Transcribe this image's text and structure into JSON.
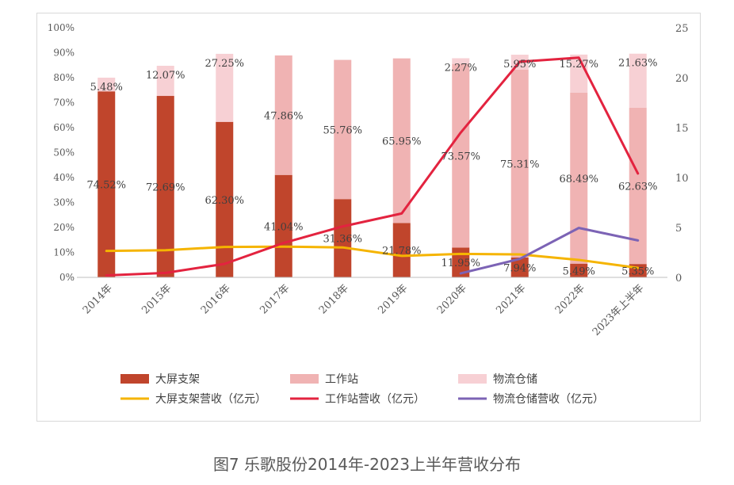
{
  "caption": "图7 乐歌股份2014年-2023上半年营收分布",
  "colors": {
    "large_screen_bar": "#c0452c",
    "workstation_bar": "#f0b3b3",
    "warehouse_bar": "#f7d0d4",
    "large_screen_line": "#f5b400",
    "workstation_line": "#e3233f",
    "warehouse_line": "#7c63b5",
    "axis_text": "#595959"
  },
  "chart_data": {
    "type": "bar",
    "stacked": true,
    "title": "",
    "categories": [
      "2014年",
      "2015年",
      "2016年",
      "2017年",
      "2018年",
      "2019年",
      "2020年",
      "2021年",
      "2022年",
      "2023年上半年"
    ],
    "y_left": {
      "ylim": [
        0,
        100
      ],
      "ticks": [
        "0%",
        "10%",
        "20%",
        "30%",
        "40%",
        "50%",
        "60%",
        "70%",
        "80%",
        "90%",
        "100%"
      ]
    },
    "y_right": {
      "ylim": [
        0,
        25
      ],
      "ticks": [
        "0",
        "5",
        "10",
        "15",
        "20",
        "25"
      ]
    },
    "grid": false,
    "legend_position": "bottom",
    "series": [
      {
        "name": "大屏支架",
        "kind": "bar",
        "axis": "left",
        "color": "#c0452c",
        "values": [
          74.52,
          72.69,
          62.3,
          41.04,
          31.36,
          21.78,
          11.95,
          7.94,
          5.49,
          5.35
        ],
        "labels": [
          "74.52%",
          "72.69%",
          "62.30%",
          "41.04%",
          "31.36%",
          "21.78%",
          "11.95%",
          "7.94%",
          "5.49%",
          "5.35%"
        ]
      },
      {
        "name": "工作站",
        "kind": "bar",
        "axis": "left",
        "color": "#f0b3b3",
        "values": [
          null,
          null,
          null,
          47.86,
          55.76,
          65.95,
          73.57,
          75.31,
          68.49,
          62.63
        ],
        "labels": [
          "",
          "",
          "",
          "47.86%",
          "55.76%",
          "65.95%",
          "73.57%",
          "75.31%",
          "68.49%",
          "62.63%"
        ]
      },
      {
        "name": "物流仓储",
        "kind": "bar",
        "axis": "left",
        "color": "#f7d0d4",
        "values": [
          5.48,
          12.07,
          27.25,
          null,
          null,
          null,
          2.27,
          5.95,
          15.27,
          21.63
        ],
        "labels": [
          "5.48%",
          "12.07%",
          "27.25%",
          "",
          "",
          "",
          "2.27%",
          "5.95%",
          "15.27%",
          "21.63%"
        ]
      },
      {
        "name": "大屏支架营收（亿元）",
        "kind": "line",
        "axis": "right",
        "color": "#f5b400",
        "values": [
          2.65,
          2.72,
          3.05,
          3.08,
          3.0,
          2.15,
          2.35,
          2.3,
          1.75,
          0.95
        ]
      },
      {
        "name": "工作站营收（亿元）",
        "kind": "line",
        "axis": "right",
        "color": "#e3233f",
        "values": [
          0.2,
          0.45,
          1.35,
          3.45,
          5.1,
          6.4,
          14.5,
          21.6,
          22.0,
          10.4
        ]
      },
      {
        "name": "物流仓储营收（亿元）",
        "kind": "line",
        "axis": "right",
        "color": "#7c63b5",
        "values": [
          null,
          null,
          null,
          null,
          null,
          null,
          0.4,
          1.85,
          4.95,
          3.7
        ]
      }
    ],
    "legend": [
      {
        "name": "大屏支架",
        "kind": "bar"
      },
      {
        "name": "工作站",
        "kind": "bar"
      },
      {
        "name": "物流仓储",
        "kind": "bar"
      },
      {
        "name": "大屏支架营收（亿元）",
        "kind": "line"
      },
      {
        "name": "工作站营收（亿元）",
        "kind": "line"
      },
      {
        "name": "物流仓储营收（亿元）",
        "kind": "line"
      }
    ]
  }
}
